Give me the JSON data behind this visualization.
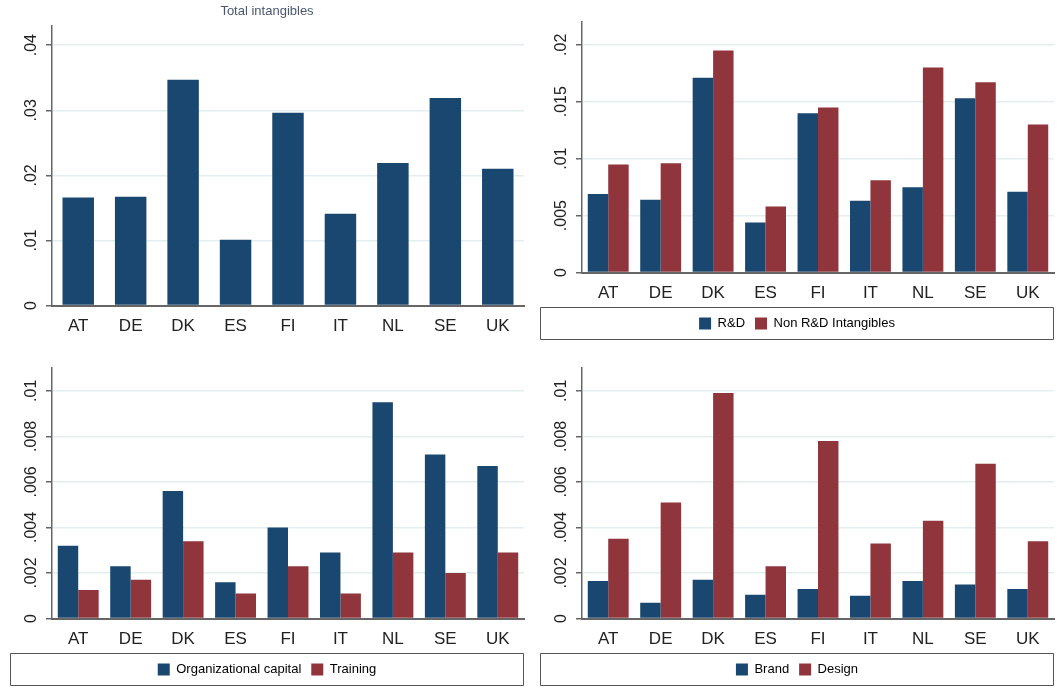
{
  "chart_data": [
    {
      "type": "bar",
      "title": "Total intangibles",
      "categories": [
        "AT",
        "DE",
        "DK",
        "ES",
        "FI",
        "IT",
        "NL",
        "SE",
        "UK"
      ],
      "values": [
        0.0166,
        0.0167,
        0.0347,
        0.0101,
        0.0296,
        0.0141,
        0.0219,
        0.0319,
        0.021
      ],
      "color": "#1a476f",
      "ylim": [
        0,
        0.043
      ],
      "yticks": [
        {
          "value": 0,
          "label": "0"
        },
        {
          "value": 0.01,
          "label": ".01"
        },
        {
          "value": 0.02,
          "label": ".02"
        },
        {
          "value": 0.03,
          "label": ".03"
        },
        {
          "value": 0.04,
          "label": ".04"
        }
      ],
      "grid": "y",
      "legend": false
    },
    {
      "type": "bar",
      "categories": [
        "AT",
        "DE",
        "DK",
        "ES",
        "FI",
        "IT",
        "NL",
        "SE",
        "UK"
      ],
      "series": [
        {
          "name": "R&D",
          "color": "#1a476f",
          "values": [
            0.0069,
            0.0064,
            0.0171,
            0.0044,
            0.014,
            0.0063,
            0.0075,
            0.0153,
            0.0071
          ]
        },
        {
          "name": "Non R&D Intangibles",
          "color": "#90353b",
          "values": [
            0.0095,
            0.0096,
            0.0195,
            0.0058,
            0.0145,
            0.0081,
            0.018,
            0.0167,
            0.013
          ]
        }
      ],
      "ylim": [
        0,
        0.022
      ],
      "yticks": [
        {
          "value": 0,
          "label": "0"
        },
        {
          "value": 0.005,
          "label": ".005"
        },
        {
          "value": 0.01,
          "label": ".01"
        },
        {
          "value": 0.015,
          "label": ".015"
        },
        {
          "value": 0.02,
          "label": ".02"
        }
      ],
      "grid": "y",
      "legend": "bottom"
    },
    {
      "type": "bar",
      "categories": [
        "AT",
        "DE",
        "DK",
        "ES",
        "FI",
        "IT",
        "NL",
        "SE",
        "UK"
      ],
      "series": [
        {
          "name": "Organizational capital",
          "color": "#1a476f",
          "values": [
            0.0032,
            0.0023,
            0.0056,
            0.0016,
            0.004,
            0.0029,
            0.0095,
            0.0072,
            0.0067
          ]
        },
        {
          "name": "Training",
          "color": "#90353b",
          "values": [
            0.00125,
            0.0017,
            0.0034,
            0.0011,
            0.0023,
            0.0011,
            0.0029,
            0.002,
            0.0029
          ]
        }
      ],
      "ylim": [
        0,
        0.011
      ],
      "yticks": [
        {
          "value": 0,
          "label": "0"
        },
        {
          "value": 0.002,
          "label": ".002"
        },
        {
          "value": 0.004,
          "label": ".004"
        },
        {
          "value": 0.006,
          "label": ".006"
        },
        {
          "value": 0.008,
          "label": ".008"
        },
        {
          "value": 0.01,
          "label": ".01"
        }
      ],
      "grid": "y",
      "legend": "bottom"
    },
    {
      "type": "bar",
      "categories": [
        "AT",
        "DE",
        "DK",
        "ES",
        "FI",
        "IT",
        "NL",
        "SE",
        "UK"
      ],
      "series": [
        {
          "name": "Brand",
          "color": "#1a476f",
          "values": [
            0.00165,
            0.0007,
            0.0017,
            0.00105,
            0.0013,
            0.001,
            0.00165,
            0.0015,
            0.0013
          ]
        },
        {
          "name": "Design",
          "color": "#90353b",
          "values": [
            0.0035,
            0.0051,
            0.0099,
            0.0023,
            0.0078,
            0.0033,
            0.0043,
            0.0068,
            0.0034
          ]
        }
      ],
      "ylim": [
        0,
        0.011
      ],
      "yticks": [
        {
          "value": 0,
          "label": "0"
        },
        {
          "value": 0.002,
          "label": ".002"
        },
        {
          "value": 0.004,
          "label": ".004"
        },
        {
          "value": 0.006,
          "label": ".006"
        },
        {
          "value": 0.008,
          "label": ".008"
        },
        {
          "value": 0.01,
          "label": ".01"
        }
      ],
      "grid": "y",
      "legend": "bottom"
    }
  ]
}
